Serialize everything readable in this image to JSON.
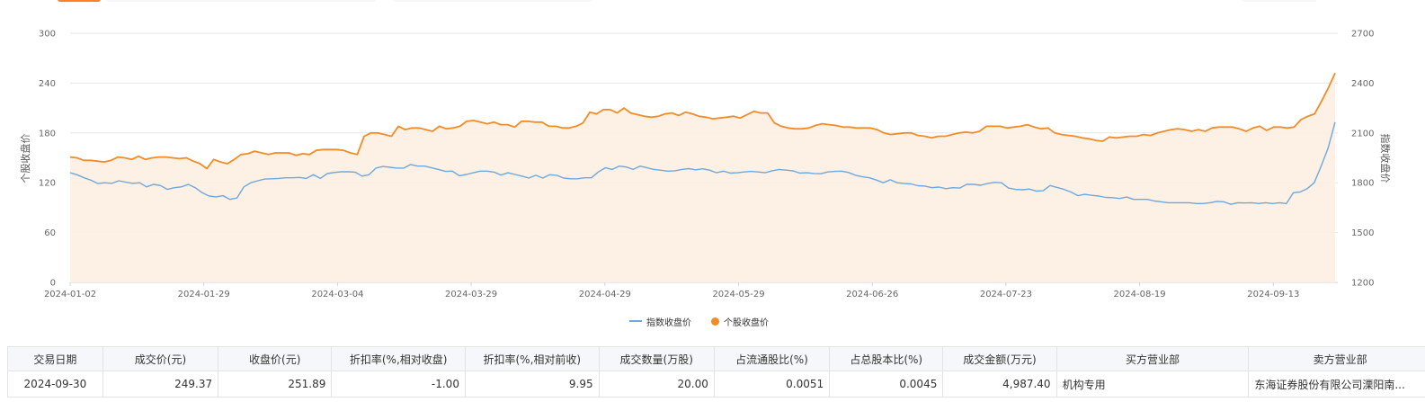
{
  "chart_data": {
    "type": "line",
    "x_ticks": [
      "2024-01-02",
      "2024-01-29",
      "2024-03-04",
      "2024-03-29",
      "2024-04-29",
      "2024-05-29",
      "2024-06-26",
      "2024-07-23",
      "2024-08-19",
      "2024-09-13"
    ],
    "y_left": {
      "label": "个股收盘价",
      "ticks": [
        0,
        60,
        120,
        180,
        240,
        300
      ],
      "range": [
        0,
        300
      ]
    },
    "y_right": {
      "label": "指数收盘价",
      "ticks": [
        1200,
        1500,
        1800,
        2100,
        2400,
        2700
      ],
      "range": [
        1200,
        2700
      ]
    },
    "series": [
      {
        "name": "指数收盘价",
        "axis": "right",
        "color": "#6fa8dc",
        "style": "line",
        "values": [
          1860,
          1848,
          1830,
          1815,
          1795,
          1800,
          1796,
          1812,
          1804,
          1796,
          1800,
          1775,
          1790,
          1783,
          1760,
          1770,
          1775,
          1790,
          1770,
          1740,
          1720,
          1715,
          1722,
          1700,
          1708,
          1775,
          1800,
          1812,
          1822,
          1824,
          1826,
          1830,
          1830,
          1832,
          1826,
          1848,
          1826,
          1855,
          1862,
          1866,
          1866,
          1864,
          1840,
          1848,
          1888,
          1898,
          1893,
          1888,
          1888,
          1910,
          1900,
          1900,
          1890,
          1880,
          1868,
          1870,
          1842,
          1850,
          1860,
          1870,
          1870,
          1864,
          1846,
          1860,
          1850,
          1840,
          1828,
          1845,
          1828,
          1848,
          1845,
          1828,
          1824,
          1824,
          1830,
          1830,
          1865,
          1890,
          1880,
          1900,
          1895,
          1880,
          1900,
          1890,
          1880,
          1875,
          1870,
          1872,
          1880,
          1885,
          1878,
          1884,
          1876,
          1860,
          1870,
          1858,
          1860,
          1865,
          1868,
          1865,
          1860,
          1872,
          1880,
          1876,
          1872,
          1858,
          1860,
          1856,
          1854,
          1865,
          1868,
          1870,
          1862,
          1845,
          1836,
          1830,
          1816,
          1800,
          1818,
          1800,
          1795,
          1793,
          1782,
          1780,
          1770,
          1774,
          1764,
          1770,
          1768,
          1790,
          1790,
          1785,
          1795,
          1802,
          1800,
          1768,
          1760,
          1758,
          1762,
          1750,
          1752,
          1783,
          1772,
          1760,
          1744,
          1722,
          1730,
          1724,
          1720,
          1712,
          1710,
          1705,
          1714,
          1700,
          1700,
          1700,
          1690,
          1685,
          1680,
          1680,
          1680,
          1680,
          1675,
          1675,
          1680,
          1688,
          1685,
          1670,
          1680,
          1678,
          1680,
          1675,
          1680,
          1675,
          1680,
          1675,
          1740,
          1745,
          1765,
          1800,
          1900,
          2010,
          2165
        ]
      },
      {
        "name": "个股收盘价",
        "axis": "left",
        "color": "#f28c28",
        "style": "area",
        "values": [
          151,
          150,
          147,
          147,
          146,
          145,
          147,
          151,
          150,
          148,
          152,
          148,
          150,
          151,
          151,
          150,
          149,
          150,
          146,
          143,
          137,
          148,
          145,
          143,
          148,
          154,
          155,
          158,
          156,
          154,
          156,
          156,
          156,
          153,
          155,
          154,
          159,
          160,
          160,
          160,
          159,
          156,
          154,
          176,
          180,
          180,
          178,
          176,
          188,
          184,
          186,
          186,
          184,
          182,
          188,
          185,
          186,
          188,
          194,
          195,
          193,
          191,
          193,
          190,
          190,
          187,
          194,
          194,
          193,
          193,
          188,
          188,
          186,
          186,
          188,
          192,
          205,
          203,
          208,
          208,
          204,
          210,
          204,
          202,
          200,
          199,
          200,
          203,
          204,
          201,
          205,
          203,
          200,
          199,
          197,
          198,
          199,
          200,
          198,
          202,
          206,
          204,
          204,
          192,
          188,
          186,
          185,
          185,
          186,
          189,
          191,
          190,
          189,
          187,
          187,
          186,
          186,
          186,
          184,
          180,
          178,
          179,
          180,
          180,
          177,
          176,
          174,
          176,
          176,
          178,
          180,
          181,
          180,
          182,
          188,
          188,
          188,
          186,
          187,
          188,
          190,
          187,
          185,
          186,
          180,
          178,
          177,
          176,
          174,
          173,
          171,
          170,
          175,
          174,
          175,
          176,
          176,
          178,
          177,
          180,
          182,
          184,
          185,
          184,
          182,
          184,
          182,
          186,
          187,
          187,
          187,
          185,
          182,
          186,
          188,
          183,
          187,
          187,
          186,
          187,
          196,
          200,
          203,
          218,
          234,
          252
        ]
      }
    ]
  },
  "legend": {
    "items": [
      "指数收盘价",
      "个股收盘价"
    ]
  },
  "table": {
    "headers": [
      "交易日期",
      "成交价(元)",
      "收盘价(元)",
      "折扣率(%,相对收盘)",
      "折扣率(%,相对前收)",
      "成交数量(万股)",
      "占流通股比(%)",
      "占总股本比(%)",
      "成交金额(万元)",
      "买方营业部",
      "卖方营业部"
    ],
    "rows": [
      [
        "2024-09-30",
        "249.37",
        "251.89",
        "-1.00",
        "9.95",
        "20.00",
        "0.0051",
        "0.0045",
        "4,987.40",
        "机构专用",
        "东海证券股份有限公司溧阳南..."
      ]
    ]
  }
}
